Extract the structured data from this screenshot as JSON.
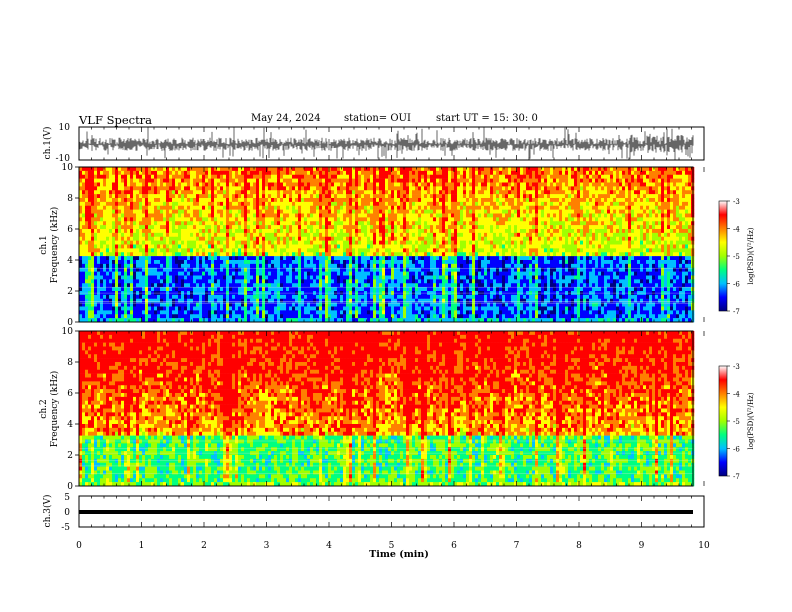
{
  "header": {
    "title": "VLF Spectra",
    "date": "May 24, 2024",
    "station": "station= OUI",
    "start": "start  UT  =   15: 30: 0"
  },
  "chart_data": [
    {
      "type": "line",
      "name": "ch1-waveform",
      "ylabel": "ch.1(V)",
      "ylim": [
        -10,
        10
      ],
      "yticks": [
        "10",
        "-10"
      ],
      "xlim": [
        0,
        10
      ],
      "waveform": {
        "baseline": -0.5,
        "noise_amplitude": 4,
        "spike_amplitude": 10
      }
    },
    {
      "type": "heatmap",
      "name": "ch1-spectrogram",
      "ylabel_top": "ch.1",
      "ylabel": "Frequency (kHz)",
      "ylim": [
        0,
        10
      ],
      "yticks": [
        "0",
        "2",
        "4",
        "6",
        "8",
        "10"
      ],
      "xlim": [
        0,
        10
      ],
      "colorbar": {
        "label": "log(PSD)(V²/Hz)",
        "ticks": [
          "-3",
          "-4",
          "-5",
          "-6",
          "-7"
        ],
        "range": [
          -7,
          -3
        ]
      },
      "intensity_profile": {
        "low_band_kHz": [
          0.3,
          4.2
        ],
        "low_band_level": -6.3,
        "upper_level": -3.8,
        "bursts": true
      }
    },
    {
      "type": "heatmap",
      "name": "ch2-spectrogram",
      "ylabel_top": "ch.2",
      "ylabel": "Frequency (kHz)",
      "ylim": [
        0,
        10
      ],
      "yticks": [
        "0",
        "2",
        "4",
        "6",
        "8",
        "10"
      ],
      "xlim": [
        0,
        10
      ],
      "colorbar": {
        "label": "log(PSD)(V²/Hz)",
        "ticks": [
          "-3",
          "-4",
          "-5",
          "-6",
          "-7"
        ],
        "range": [
          -7,
          -3
        ]
      },
      "intensity_profile": {
        "low_band_kHz": [
          0.2,
          3.2
        ],
        "low_band_level": -5.3,
        "upper_level": -3.2,
        "bursts": true
      }
    },
    {
      "type": "line",
      "name": "ch3-waveform",
      "ylabel": "ch.3(V)",
      "ylim": [
        -5,
        5
      ],
      "yticks": [
        "5",
        "0",
        "-5"
      ],
      "xlim": [
        0,
        10
      ],
      "constant_value": -0.5
    }
  ],
  "xaxis": {
    "label": "Time  (min)",
    "ticks": [
      "0",
      "1",
      "2",
      "3",
      "4",
      "5",
      "6",
      "7",
      "8",
      "9",
      "10"
    ]
  },
  "colors": {
    "colormap": [
      "#000080",
      "#0000ff",
      "#00c0ff",
      "#00ff80",
      "#a0ff00",
      "#ffff00",
      "#ff8000",
      "#ff0000",
      "#ffffff"
    ],
    "axis": "#000000"
  }
}
